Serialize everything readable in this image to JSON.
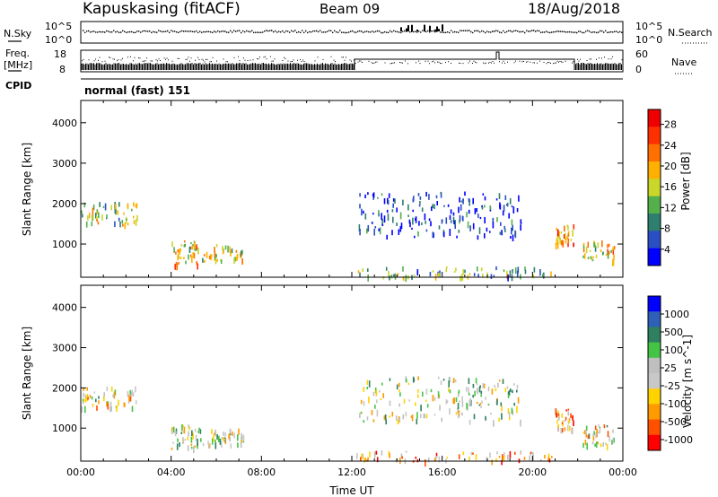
{
  "header": {
    "station": "Kapuskasing (fitACF)",
    "beam": "Beam 09",
    "date": "18/Aug/2018"
  },
  "strips": {
    "nsky": {
      "label": "N.Sky",
      "ticks": [
        "10^5",
        "10^0"
      ],
      "right_label": "N.Search",
      "right_ticks": [
        "10^5",
        "10^0"
      ]
    },
    "freq": {
      "label_line1": "Freq.",
      "label_line2": "[MHz]",
      "ticks": [
        "18",
        "8"
      ],
      "right_label": "Nave",
      "right_ticks": [
        "60",
        "0"
      ]
    },
    "cpid": {
      "label": "CPID",
      "text": "normal (fast) 151"
    }
  },
  "colors": {
    "power": [
      "#0000ff",
      "#2a4fc4",
      "#2e7f6e",
      "#54b04a",
      "#c9d62a",
      "#ffb000",
      "#ff7000",
      "#ff3000",
      "#ee0000"
    ],
    "velocity": [
      "#ff0000",
      "#ff5000",
      "#ff9a00",
      "#ffd200",
      "#c8c8c8",
      "#bfbfbf",
      "#44c444",
      "#2e8060",
      "#2e60b8",
      "#0000ff"
    ]
  },
  "chart_data": [
    {
      "type": "heatmap",
      "panel": "power",
      "ylabel": "Slant Range [km]",
      "xlim": [
        0,
        24
      ],
      "ylim": [
        180,
        4550
      ],
      "yticks": [
        "1000",
        "2000",
        "3000",
        "4000"
      ],
      "colorbar": {
        "label": "Power [dB]",
        "ticks": [
          "4",
          "8",
          "12",
          "16",
          "20",
          "24",
          "28"
        ],
        "range": [
          0,
          30
        ]
      },
      "regions": [
        {
          "t0": 0.0,
          "t1": 2.5,
          "r0": 1500,
          "r1": 2050,
          "level": 0.45
        },
        {
          "t0": 4.0,
          "t1": 5.3,
          "r0": 500,
          "r1": 1100,
          "level": 0.55
        },
        {
          "t0": 5.3,
          "t1": 7.2,
          "r0": 600,
          "r1": 1000,
          "level": 0.5
        },
        {
          "t0": 12.0,
          "t1": 21.0,
          "r0": 200,
          "r1": 450,
          "level": 0.35
        },
        {
          "t0": 12.3,
          "t1": 19.5,
          "r0": 1200,
          "r1": 2300,
          "level": 0.15
        },
        {
          "t0": 21.0,
          "t1": 21.8,
          "r0": 1000,
          "r1": 1500,
          "level": 0.7
        },
        {
          "t0": 22.2,
          "t1": 23.6,
          "r0": 600,
          "r1": 1100,
          "level": 0.55
        }
      ]
    },
    {
      "type": "heatmap",
      "panel": "velocity",
      "ylabel": "Slant Range [km]",
      "xlabel": "Time UT",
      "xlim": [
        0,
        24
      ],
      "ylim": [
        180,
        4550
      ],
      "xticks": [
        "00:00",
        "04:00",
        "08:00",
        "12:00",
        "16:00",
        "20:00",
        "00:00"
      ],
      "yticks": [
        "1000",
        "2000",
        "3000",
        "4000"
      ],
      "colorbar": {
        "label": "Velocity [m s^-1]",
        "ticks": [
          "1000",
          "500",
          "100",
          "25",
          "-25",
          "-100",
          "-500",
          "-1000"
        ]
      },
      "regions": [
        {
          "t0": 0.0,
          "t1": 2.5,
          "r0": 1500,
          "r1": 2050,
          "level": 0.45
        },
        {
          "t0": 4.0,
          "t1": 5.3,
          "r0": 500,
          "r1": 1100,
          "level": 0.5
        },
        {
          "t0": 5.3,
          "t1": 7.2,
          "r0": 600,
          "r1": 1000,
          "level": 0.5
        },
        {
          "t0": 12.0,
          "t1": 21.0,
          "r0": 200,
          "r1": 450,
          "level": 0.3
        },
        {
          "t0": 12.3,
          "t1": 19.5,
          "r0": 1200,
          "r1": 2300,
          "level": 0.5
        },
        {
          "t0": 21.0,
          "t1": 21.8,
          "r0": 1000,
          "r1": 1500,
          "level": 0.25
        },
        {
          "t0": 22.2,
          "t1": 23.6,
          "r0": 600,
          "r1": 1100,
          "level": 0.45
        }
      ]
    }
  ]
}
